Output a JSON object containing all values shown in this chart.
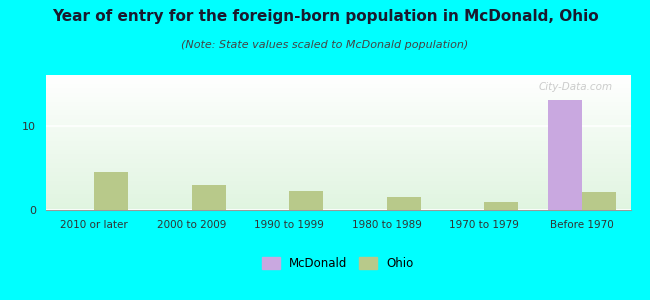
{
  "title": "Year of entry for the foreign-born population in McDonald, Ohio",
  "subtitle": "(Note: State values scaled to McDonald population)",
  "categories": [
    "2010 or later",
    "2000 to 2009",
    "1990 to 1999",
    "1980 to 1989",
    "1970 to 1979",
    "Before 1970"
  ],
  "mcdonald_values": [
    0,
    0,
    0,
    0,
    0,
    13
  ],
  "ohio_values": [
    4.5,
    3.0,
    2.2,
    1.5,
    1.0,
    2.1
  ],
  "mcdonald_color": "#c9a8e0",
  "ohio_color": "#b8c98a",
  "background_color": "#00ffff",
  "ylim": [
    0,
    16
  ],
  "yticks": [
    0,
    10
  ],
  "bar_width": 0.35,
  "title_fontsize": 11,
  "subtitle_fontsize": 8,
  "title_color": "#1a1a2e",
  "subtitle_color": "#444444",
  "watermark": "City-Data.com"
}
